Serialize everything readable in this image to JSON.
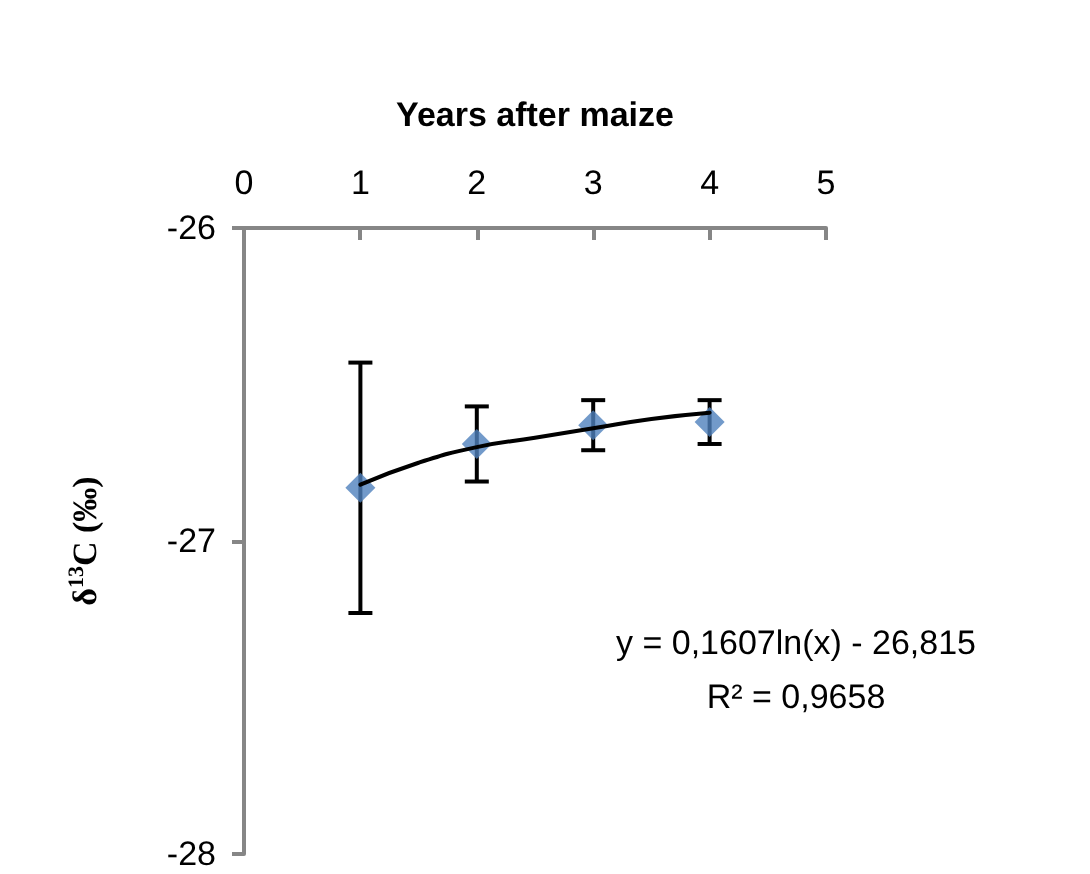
{
  "chart_data": {
    "type": "scatter",
    "xlabel": "Years after maize",
    "ylabel": "δ$^{13}$C (‰)",
    "xlim": [
      0,
      5
    ],
    "xticks": [
      0,
      1,
      2,
      3,
      4,
      5
    ],
    "ylim": [
      -28,
      -26
    ],
    "yticks": [
      -28,
      -27,
      -26
    ],
    "marker": "diamond",
    "grid": false,
    "series": [
      {
        "color": "#4f81bd",
        "x": [
          1,
          2,
          3,
          4
        ],
        "values": [
          -26.83,
          -26.69,
          -26.63,
          -26.62
        ],
        "errors": [
          0.4,
          0.12,
          0.08,
          0.07
        ]
      },
      {
        "type": "line",
        "color": "#000000",
        "marker": "none",
        "x": [
          1,
          1.5,
          2,
          2.5,
          3,
          3.5,
          4
        ],
        "values": [
          -26.82,
          -26.75,
          -26.7,
          -26.67,
          -26.64,
          -26.61,
          -26.59
        ]
      }
    ],
    "annotations": [
      "y = 0,1607ln(x) - 26,815",
      "R² = 0,9658"
    ]
  }
}
